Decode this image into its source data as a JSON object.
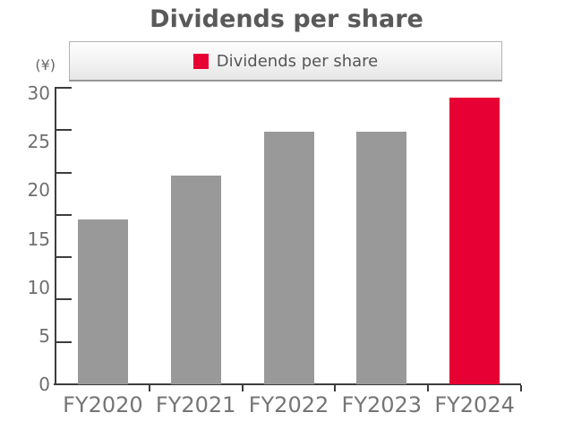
{
  "title": "Dividends per share",
  "chart_data": {
    "type": "bar",
    "title": "Dividends per share",
    "categories": [
      "FY2020",
      "FY2021",
      "FY2022",
      "FY2023",
      "FY2024"
    ],
    "values": [
      17,
      21.5,
      26,
      26,
      29.5
    ],
    "series": [
      {
        "name": "Dividends per share",
        "values": [
          17,
          21.5,
          26,
          26,
          29.5
        ]
      }
    ],
    "xlabel": "",
    "ylabel": "(¥)",
    "ylim": [
      0,
      30
    ],
    "yticks": [
      0,
      5,
      10,
      15,
      20,
      25,
      30
    ],
    "grid": false,
    "legend": {
      "position": "top",
      "entries": [
        {
          "label": "Dividends per share",
          "color": "#e60033"
        }
      ]
    },
    "colors": {
      "bar_default": "#999999",
      "bar_highlight": "#e60033",
      "axis": "#3d3d3d",
      "title_text": "#595959",
      "tick_label_text": "#707070"
    },
    "highlight_index": 4
  }
}
